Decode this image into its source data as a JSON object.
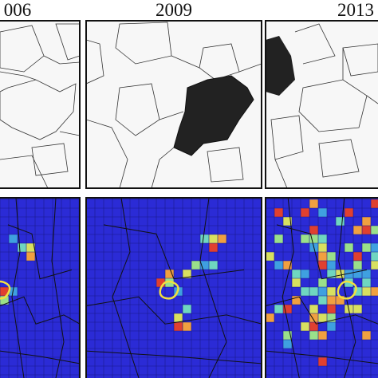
{
  "panels": [
    {
      "title": "006"
    },
    {
      "title": "2009"
    },
    {
      "title": "2013"
    }
  ]
}
